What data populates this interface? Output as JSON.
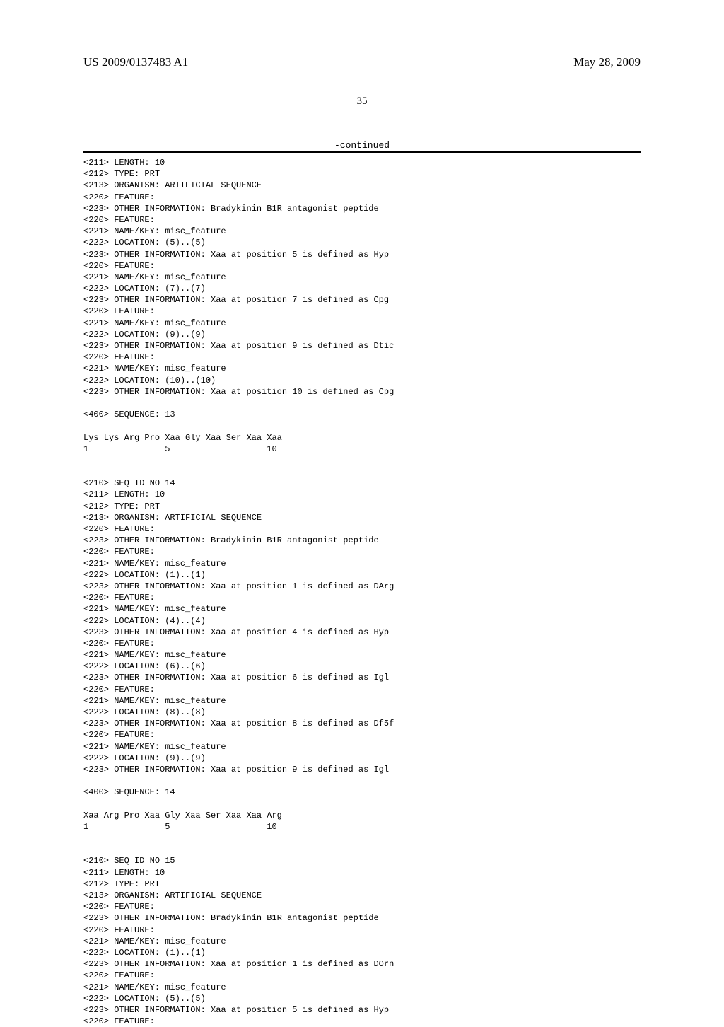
{
  "header": {
    "left": "US 2009/0137483 A1",
    "right": "May 28, 2009"
  },
  "page_number": "35",
  "continued": "-continued",
  "seq": {
    "l1": "<211> LENGTH: 10",
    "l2": "<212> TYPE: PRT",
    "l3": "<213> ORGANISM: ARTIFICIAL SEQUENCE",
    "l4": "<220> FEATURE:",
    "l5": "<223> OTHER INFORMATION: Bradykinin B1R antagonist peptide",
    "l6": "<220> FEATURE:",
    "l7": "<221> NAME/KEY: misc_feature",
    "l8": "<222> LOCATION: (5)..(5)",
    "l9": "<223> OTHER INFORMATION: Xaa at position 5 is defined as Hyp",
    "l10": "<220> FEATURE:",
    "l11": "<221> NAME/KEY: misc_feature",
    "l12": "<222> LOCATION: (7)..(7)",
    "l13": "<223> OTHER INFORMATION: Xaa at position 7 is defined as Cpg",
    "l14": "<220> FEATURE:",
    "l15": "<221> NAME/KEY: misc_feature",
    "l16": "<222> LOCATION: (9)..(9)",
    "l17": "<223> OTHER INFORMATION: Xaa at position 9 is defined as Dtic",
    "l18": "<220> FEATURE:",
    "l19": "<221> NAME/KEY: misc_feature",
    "l20": "<222> LOCATION: (10)..(10)",
    "l21": "<223> OTHER INFORMATION: Xaa at position 10 is defined as Cpg",
    "l22": "",
    "l23": "<400> SEQUENCE: 13",
    "l24": "",
    "l25": "Lys Lys Arg Pro Xaa Gly Xaa Ser Xaa Xaa",
    "l26": "1               5                   10",
    "l27": "",
    "l28": "",
    "l29": "<210> SEQ ID NO 14",
    "l30": "<211> LENGTH: 10",
    "l31": "<212> TYPE: PRT",
    "l32": "<213> ORGANISM: ARTIFICIAL SEQUENCE",
    "l33": "<220> FEATURE:",
    "l34": "<223> OTHER INFORMATION: Bradykinin B1R antagonist peptide",
    "l35": "<220> FEATURE:",
    "l36": "<221> NAME/KEY: misc_feature",
    "l37": "<222> LOCATION: (1)..(1)",
    "l38": "<223> OTHER INFORMATION: Xaa at position 1 is defined as DArg",
    "l39": "<220> FEATURE:",
    "l40": "<221> NAME/KEY: misc_feature",
    "l41": "<222> LOCATION: (4)..(4)",
    "l42": "<223> OTHER INFORMATION: Xaa at position 4 is defined as Hyp",
    "l43": "<220> FEATURE:",
    "l44": "<221> NAME/KEY: misc_feature",
    "l45": "<222> LOCATION: (6)..(6)",
    "l46": "<223> OTHER INFORMATION: Xaa at position 6 is defined as Igl",
    "l47": "<220> FEATURE:",
    "l48": "<221> NAME/KEY: misc_feature",
    "l49": "<222> LOCATION: (8)..(8)",
    "l50": "<223> OTHER INFORMATION: Xaa at position 8 is defined as Df5f",
    "l51": "<220> FEATURE:",
    "l52": "<221> NAME/KEY: misc_feature",
    "l53": "<222> LOCATION: (9)..(9)",
    "l54": "<223> OTHER INFORMATION: Xaa at position 9 is defined as Igl",
    "l55": "",
    "l56": "<400> SEQUENCE: 14",
    "l57": "",
    "l58": "Xaa Arg Pro Xaa Gly Xaa Ser Xaa Xaa Arg",
    "l59": "1               5                   10",
    "l60": "",
    "l61": "",
    "l62": "<210> SEQ ID NO 15",
    "l63": "<211> LENGTH: 10",
    "l64": "<212> TYPE: PRT",
    "l65": "<213> ORGANISM: ARTIFICIAL SEQUENCE",
    "l66": "<220> FEATURE:",
    "l67": "<223> OTHER INFORMATION: Bradykinin B1R antagonist peptide",
    "l68": "<220> FEATURE:",
    "l69": "<221> NAME/KEY: misc_feature",
    "l70": "<222> LOCATION: (1)..(1)",
    "l71": "<223> OTHER INFORMATION: Xaa at position 1 is defined as DOrn",
    "l72": "<220> FEATURE:",
    "l73": "<221> NAME/KEY: misc_feature",
    "l74": "<222> LOCATION: (5)..(5)",
    "l75": "<223> OTHER INFORMATION: Xaa at position 5 is defined as Hyp",
    "l76": "<220> FEATURE:"
  }
}
